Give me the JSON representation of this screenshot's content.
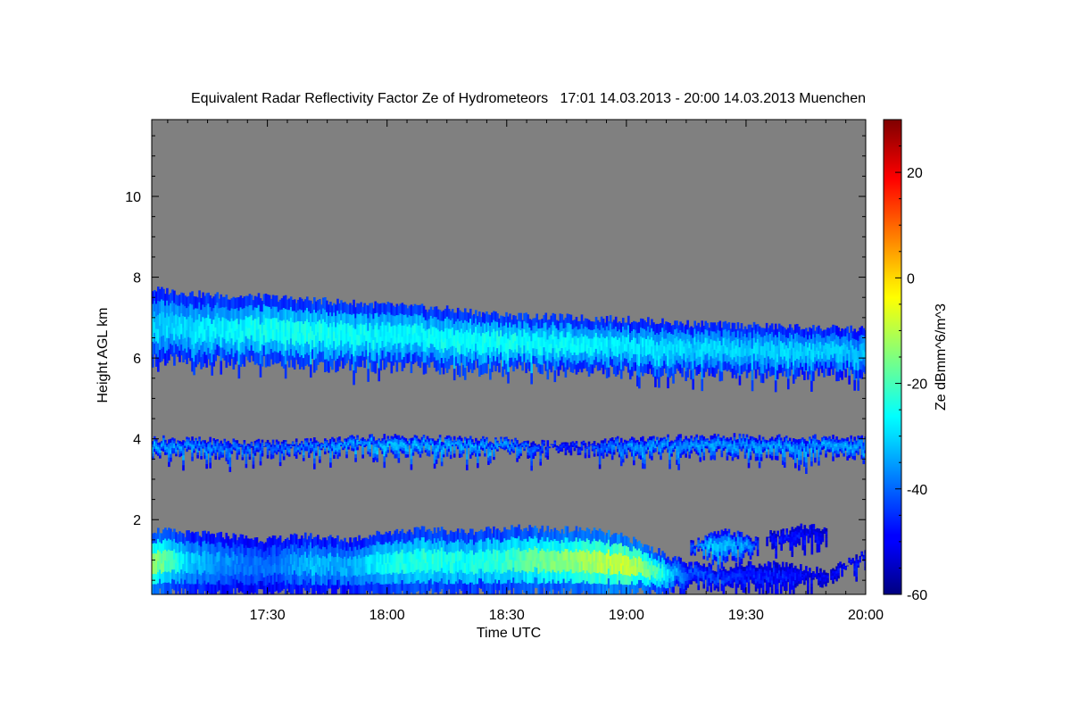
{
  "chart_data": {
    "type": "heatmap",
    "title": "Equivalent Radar Reflectivity Factor Ze of Hydrometeors   17:01 14.03.2013 - 20:00 14.03.2013 Muenchen",
    "xlabel": "Time UTC",
    "ylabel": "Height AGL km",
    "x_range_minutes": [
      1021,
      1200
    ],
    "x_ticks": [
      {
        "minute": 1050,
        "label": "17:30"
      },
      {
        "minute": 1080,
        "label": "18:00"
      },
      {
        "minute": 1110,
        "label": "18:30"
      },
      {
        "minute": 1140,
        "label": "19:00"
      },
      {
        "minute": 1170,
        "label": "19:30"
      },
      {
        "minute": 1200,
        "label": "20:00"
      }
    ],
    "ylim": [
      0.15,
      11.9
    ],
    "y_ticks": [
      2,
      4,
      6,
      8,
      10
    ],
    "colorbar": {
      "label": "Ze dBmm^6/m^3",
      "range": [
        -60,
        30
      ],
      "ticks": [
        -60,
        -40,
        -20,
        0,
        20
      ],
      "colormap": "jet"
    },
    "background_color": "#808080",
    "layers": [
      {
        "name": "upper",
        "times": [
          1021,
          1035,
          1050,
          1065,
          1080,
          1095,
          1110,
          1125,
          1140,
          1155,
          1170,
          1185,
          1200
        ],
        "bottom": [
          5.95,
          5.9,
          5.95,
          5.8,
          5.8,
          5.75,
          5.8,
          5.7,
          5.65,
          5.6,
          5.55,
          5.6,
          5.6
        ],
        "top": [
          7.7,
          7.55,
          7.5,
          7.4,
          7.3,
          7.2,
          7.05,
          7.0,
          6.95,
          6.85,
          6.8,
          6.75,
          6.7
        ],
        "peak_dbz": [
          -28,
          -25,
          -22,
          -22,
          -24,
          -23,
          -22,
          -24,
          -26,
          -27,
          -28,
          -28,
          -30
        ]
      },
      {
        "name": "middle",
        "times": [
          1021,
          1050,
          1080,
          1110,
          1125,
          1140,
          1170,
          1200
        ],
        "bottom": [
          3.6,
          3.65,
          3.7,
          3.65,
          3.7,
          3.65,
          3.6,
          3.6
        ],
        "top": [
          4.0,
          3.9,
          4.05,
          3.95,
          3.85,
          4.0,
          4.05,
          4.0
        ],
        "peak_dbz": [
          -32,
          -38,
          -30,
          -33,
          -45,
          -34,
          -33,
          -32
        ]
      },
      {
        "name": "lower",
        "times": [
          1021,
          1030,
          1040,
          1050,
          1060,
          1070,
          1080,
          1090,
          1100,
          1110,
          1120,
          1130,
          1140,
          1148,
          1155,
          1163,
          1170,
          1180,
          1190,
          1200
        ],
        "bottom": [
          0.15,
          0.15,
          0.15,
          0.15,
          0.15,
          0.15,
          0.15,
          0.15,
          0.15,
          0.15,
          0.15,
          0.15,
          0.15,
          0.15,
          0.3,
          0.4,
          0.35,
          0.3,
          0.5,
          1.1
        ],
        "top": [
          1.75,
          1.65,
          1.6,
          1.5,
          1.6,
          1.5,
          1.7,
          1.75,
          1.7,
          1.8,
          1.75,
          1.75,
          1.55,
          1.2,
          0.9,
          0.8,
          0.9,
          0.9,
          0.7,
          1.2
        ],
        "peak_dbz": [
          -8,
          -28,
          -35,
          -38,
          -30,
          -32,
          -22,
          -20,
          -22,
          -18,
          -12,
          -8,
          -3,
          -18,
          -40,
          -42,
          -45,
          -46,
          -50,
          -45
        ]
      },
      {
        "name": "lower-upper-patch",
        "times": [
          1156,
          1160,
          1165,
          1170,
          1173
        ],
        "bottom": [
          1.2,
          1.15,
          1.1,
          1.1,
          1.25
        ],
        "top": [
          1.4,
          1.6,
          1.7,
          1.6,
          1.45
        ],
        "peak_dbz": [
          -42,
          -28,
          -30,
          -33,
          -45
        ]
      },
      {
        "name": "lower-right-patch",
        "times": [
          1175,
          1180,
          1185,
          1190
        ],
        "bottom": [
          1.45,
          1.4,
          1.45,
          1.5
        ],
        "top": [
          1.65,
          1.7,
          1.85,
          1.8
        ],
        "peak_dbz": [
          -48,
          -46,
          -48,
          -50
        ]
      }
    ]
  }
}
